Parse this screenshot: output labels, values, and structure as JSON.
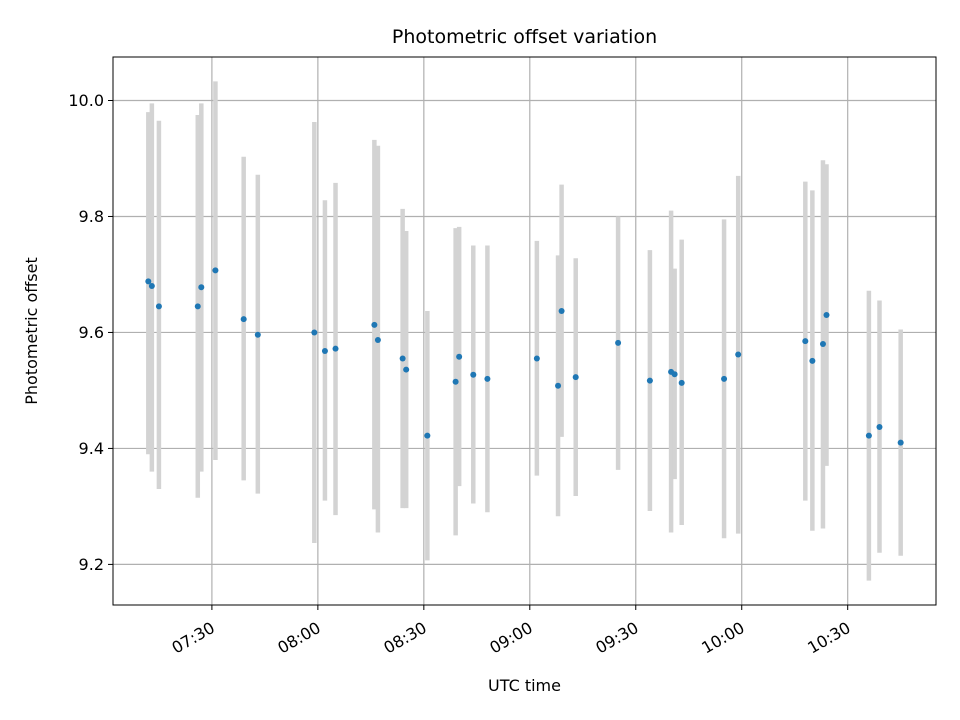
{
  "chart_data": {
    "type": "scatter",
    "title": "Photometric offset variation",
    "xlabel": "UTC time",
    "ylabel": "Photometric offset",
    "x_tick_labels": [
      "07:30",
      "08:00",
      "08:30",
      "09:00",
      "09:30",
      "10:00",
      "10:30"
    ],
    "x_tick_values": [
      "07:30",
      "08:00",
      "08:30",
      "09:00",
      "09:30",
      "10:00",
      "10:30"
    ],
    "y_tick_labels": [
      "9.2",
      "9.4",
      "9.6",
      "9.8",
      "10.0"
    ],
    "y_tick_values": [
      9.2,
      9.4,
      9.6,
      9.8,
      10.0
    ],
    "xlim": [
      "07:02",
      "10:55"
    ],
    "ylim": [
      9.13,
      10.075
    ],
    "grid": true,
    "colors": {
      "points": "#1f77b4",
      "errorbars": "#d3d3d3",
      "grid": "#b0b0b0"
    },
    "series": [
      {
        "points": [
          {
            "x": "07:12",
            "y": 9.688,
            "lo": 9.39,
            "hi": 9.98
          },
          {
            "x": "07:13",
            "y": 9.68,
            "lo": 9.36,
            "hi": 9.995
          },
          {
            "x": "07:15",
            "y": 9.645,
            "lo": 9.33,
            "hi": 9.965
          },
          {
            "x": "07:26",
            "y": 9.645,
            "lo": 9.315,
            "hi": 9.975
          },
          {
            "x": "07:27",
            "y": 9.678,
            "lo": 9.36,
            "hi": 9.995
          },
          {
            "x": "07:31",
            "y": 9.707,
            "lo": 9.38,
            "hi": 10.033
          },
          {
            "x": "07:39",
            "y": 9.623,
            "lo": 9.345,
            "hi": 9.903
          },
          {
            "x": "07:43",
            "y": 9.596,
            "lo": 9.322,
            "hi": 9.872
          },
          {
            "x": "07:59",
            "y": 9.6,
            "lo": 9.237,
            "hi": 9.963
          },
          {
            "x": "08:02",
            "y": 9.568,
            "lo": 9.31,
            "hi": 9.828
          },
          {
            "x": "08:05",
            "y": 9.572,
            "lo": 9.285,
            "hi": 9.858
          },
          {
            "x": "08:16",
            "y": 9.613,
            "lo": 9.295,
            "hi": 9.932
          },
          {
            "x": "08:17",
            "y": 9.587,
            "lo": 9.255,
            "hi": 9.922
          },
          {
            "x": "08:24",
            "y": 9.555,
            "lo": 9.297,
            "hi": 9.813
          },
          {
            "x": "08:25",
            "y": 9.536,
            "lo": 9.297,
            "hi": 9.775
          },
          {
            "x": "08:31",
            "y": 9.422,
            "lo": 9.207,
            "hi": 9.637
          },
          {
            "x": "08:39",
            "y": 9.515,
            "lo": 9.25,
            "hi": 9.78
          },
          {
            "x": "08:40",
            "y": 9.558,
            "lo": 9.335,
            "hi": 9.782
          },
          {
            "x": "08:44",
            "y": 9.527,
            "lo": 9.305,
            "hi": 9.75
          },
          {
            "x": "08:48",
            "y": 9.52,
            "lo": 9.29,
            "hi": 9.75
          },
          {
            "x": "09:02",
            "y": 9.555,
            "lo": 9.353,
            "hi": 9.758
          },
          {
            "x": "09:08",
            "y": 9.508,
            "lo": 9.283,
            "hi": 9.733
          },
          {
            "x": "09:09",
            "y": 9.637,
            "lo": 9.42,
            "hi": 9.855
          },
          {
            "x": "09:13",
            "y": 9.523,
            "lo": 9.318,
            "hi": 9.728
          },
          {
            "x": "09:25",
            "y": 9.582,
            "lo": 9.363,
            "hi": 9.8
          },
          {
            "x": "09:34",
            "y": 9.517,
            "lo": 9.292,
            "hi": 9.742
          },
          {
            "x": "09:40",
            "y": 9.532,
            "lo": 9.255,
            "hi": 9.81
          },
          {
            "x": "09:41",
            "y": 9.528,
            "lo": 9.347,
            "hi": 9.71
          },
          {
            "x": "09:43",
            "y": 9.513,
            "lo": 9.268,
            "hi": 9.76
          },
          {
            "x": "09:55",
            "y": 9.52,
            "lo": 9.245,
            "hi": 9.795
          },
          {
            "x": "09:59",
            "y": 9.562,
            "lo": 9.253,
            "hi": 9.87
          },
          {
            "x": "10:18",
            "y": 9.585,
            "lo": 9.31,
            "hi": 9.86
          },
          {
            "x": "10:20",
            "y": 9.551,
            "lo": 9.258,
            "hi": 9.845
          },
          {
            "x": "10:23",
            "y": 9.58,
            "lo": 9.262,
            "hi": 9.897
          },
          {
            "x": "10:24",
            "y": 9.63,
            "lo": 9.37,
            "hi": 9.89
          },
          {
            "x": "10:36",
            "y": 9.422,
            "lo": 9.172,
            "hi": 9.672
          },
          {
            "x": "10:39",
            "y": 9.437,
            "lo": 9.22,
            "hi": 9.655
          },
          {
            "x": "10:45",
            "y": 9.41,
            "lo": 9.215,
            "hi": 9.605
          }
        ]
      }
    ]
  }
}
